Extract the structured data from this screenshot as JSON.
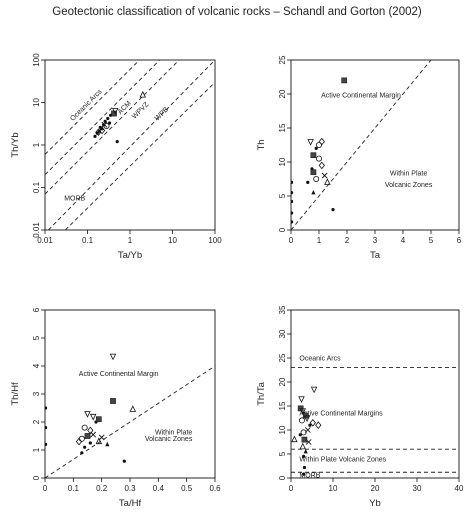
{
  "figure_title": "Geotectonic classification of volcanic rocks – Schandl and Gorton (2002)",
  "chart_data": [
    {
      "id": "p1",
      "type": "scatter",
      "xscale": "log",
      "yscale": "log",
      "xlim": [
        0.01,
        100
      ],
      "ylim": [
        0.01,
        100
      ],
      "xticks": [
        0.01,
        0.1,
        1,
        10,
        100
      ],
      "xtick_labels": [
        "0.01",
        "0.1",
        "1",
        "10",
        "100"
      ],
      "yticks": [
        0.01,
        0.1,
        1,
        10,
        100
      ],
      "ytick_labels": [
        "0.01",
        "0.1",
        "1",
        "10",
        "100"
      ],
      "xlabel": "Ta/Yb",
      "ylabel": "Th/Yb",
      "grid": false,
      "lines": [
        {
          "style": "dashed",
          "points": [
            [
              0.01,
              0.6
            ],
            [
              1.67,
              100
            ]
          ]
        },
        {
          "style": "dashed",
          "points": [
            [
              0.01,
              0.2
            ],
            [
              5,
              100
            ]
          ]
        },
        {
          "style": "dashed",
          "points": [
            [
              0.01,
              0.07
            ],
            [
              14.3,
              100
            ]
          ]
        },
        {
          "style": "dashed",
          "points": [
            [
              0.012,
              0.01
            ],
            [
              100,
              100
            ]
          ]
        },
        {
          "style": "dashed",
          "points": [
            [
              0.03,
              0.01
            ],
            [
              100,
              30
            ]
          ]
        }
      ],
      "annotations": [
        {
          "text": "Oceanic Arcs",
          "x": 0.1,
          "y": 8,
          "rotate": -45
        },
        {
          "text": "ACM",
          "x": 0.8,
          "y": 7,
          "rotate": -45
        },
        {
          "text": "WPVZ",
          "x": 1.9,
          "y": 6,
          "rotate": -45
        },
        {
          "text": "WPB",
          "x": 6,
          "y": 5,
          "rotate": -45
        },
        {
          "text": "MORB",
          "x": 0.05,
          "y": 0.05,
          "rotate": 0
        }
      ],
      "points": [
        {
          "x": 0.15,
          "y": 1.6,
          "m": "dot"
        },
        {
          "x": 0.17,
          "y": 1.9,
          "m": "dot"
        },
        {
          "x": 0.19,
          "y": 2.1,
          "m": "dot"
        },
        {
          "x": 0.2,
          "y": 2.6,
          "m": "dot"
        },
        {
          "x": 0.22,
          "y": 2.4,
          "m": "dot"
        },
        {
          "x": 0.24,
          "y": 3.0,
          "m": "dot"
        },
        {
          "x": 0.26,
          "y": 3.6,
          "m": "dot"
        },
        {
          "x": 0.3,
          "y": 4.2,
          "m": "dot"
        },
        {
          "x": 0.33,
          "y": 3.3,
          "m": "dot"
        },
        {
          "x": 0.35,
          "y": 5.0,
          "m": "dot"
        },
        {
          "x": 0.28,
          "y": 2.8,
          "m": "circle"
        },
        {
          "x": 0.22,
          "y": 2.2,
          "m": "diamond"
        },
        {
          "x": 0.18,
          "y": 2.0,
          "m": "diamond"
        },
        {
          "x": 0.42,
          "y": 5.5,
          "m": "square"
        },
        {
          "x": 0.45,
          "y": 6.5,
          "m": "tri-down"
        },
        {
          "x": 0.25,
          "y": 3.0,
          "m": "cross"
        },
        {
          "x": 0.5,
          "y": 1.2,
          "m": "dot"
        },
        {
          "x": 2.0,
          "y": 15,
          "m": "tri-up"
        }
      ]
    },
    {
      "id": "p2",
      "type": "scatter",
      "xlim": [
        0,
        6
      ],
      "ylim": [
        0,
        25
      ],
      "xticks": [
        0,
        1,
        2,
        3,
        4,
        5,
        6
      ],
      "xtick_labels": [
        "0",
        "1",
        "2",
        "3",
        "4",
        "5",
        "6"
      ],
      "yticks": [
        0,
        5,
        10,
        15,
        20,
        25
      ],
      "ytick_labels": [
        "0",
        "5",
        "10",
        "15",
        "20",
        "25"
      ],
      "xlabel": "Ta",
      "ylabel": "Th",
      "grid": false,
      "lines": [
        {
          "style": "dashed",
          "points": [
            [
              0,
              0
            ],
            [
              5,
              25
            ]
          ]
        }
      ],
      "annotations": [
        {
          "text": "Active Continental Margin",
          "x": 2.5,
          "y": 19.5,
          "anchor": "middle"
        },
        {
          "text": "Within Plate",
          "x": 4.2,
          "y": 8.0,
          "anchor": "middle"
        },
        {
          "text": "Volcanic Zones",
          "x": 4.2,
          "y": 6.3,
          "anchor": "middle"
        }
      ],
      "points": [
        {
          "x": 0.02,
          "y": 7.0,
          "m": "dot"
        },
        {
          "x": 0.02,
          "y": 5.5,
          "m": "dot"
        },
        {
          "x": 0.02,
          "y": 4.2,
          "m": "dot"
        },
        {
          "x": 0.02,
          "y": 2.5,
          "m": "dot"
        },
        {
          "x": 0.02,
          "y": 1.2,
          "m": "dot"
        },
        {
          "x": 1.9,
          "y": 22,
          "m": "square"
        },
        {
          "x": 0.7,
          "y": 13,
          "m": "tri-down"
        },
        {
          "x": 0.9,
          "y": 12,
          "m": "dot"
        },
        {
          "x": 0.8,
          "y": 11,
          "m": "square"
        },
        {
          "x": 1.0,
          "y": 12.5,
          "m": "circle"
        },
        {
          "x": 1.1,
          "y": 13,
          "m": "diamond"
        },
        {
          "x": 1.0,
          "y": 10.5,
          "m": "circle"
        },
        {
          "x": 0.75,
          "y": 9,
          "m": "dot"
        },
        {
          "x": 0.8,
          "y": 8.5,
          "m": "square"
        },
        {
          "x": 1.2,
          "y": 8,
          "m": "cross"
        },
        {
          "x": 1.1,
          "y": 9.5,
          "m": "diamond"
        },
        {
          "x": 0.9,
          "y": 7.5,
          "m": "circle"
        },
        {
          "x": 1.3,
          "y": 7.0,
          "m": "tri-up"
        },
        {
          "x": 0.8,
          "y": 5.5,
          "m": "tri-up-fill"
        },
        {
          "x": 0.6,
          "y": 7.0,
          "m": "dot"
        },
        {
          "x": 1.5,
          "y": 3,
          "m": "dot"
        }
      ]
    },
    {
      "id": "p3",
      "type": "scatter",
      "xlim": [
        0,
        0.6
      ],
      "ylim": [
        0,
        6
      ],
      "xticks": [
        0,
        0.1,
        0.2,
        0.3,
        0.4,
        0.5,
        0.6
      ],
      "xtick_labels": [
        "0",
        "0.1",
        "0.2",
        "0.3",
        "0.4",
        "0.5",
        "0.6"
      ],
      "yticks": [
        0,
        1,
        2,
        3,
        4,
        5,
        6
      ],
      "ytick_labels": [
        "0",
        "1",
        "2",
        "3",
        "4",
        "5",
        "6"
      ],
      "xlabel": "Ta/Hf",
      "ylabel": "Th/Hf",
      "grid": false,
      "lines": [
        {
          "style": "dashed",
          "points": [
            [
              0,
              0
            ],
            [
              0.6,
              4
            ]
          ]
        }
      ],
      "annotations": [
        {
          "text": "Active Continental Margin",
          "x": 0.26,
          "y": 3.65,
          "anchor": "middle"
        },
        {
          "text": "Within Plate",
          "x": 0.52,
          "y": 1.55,
          "anchor": "end"
        },
        {
          "text": "Volcanic Zones",
          "x": 0.52,
          "y": 1.33,
          "anchor": "end"
        }
      ],
      "points": [
        {
          "x": 0.002,
          "y": 2.5,
          "m": "dot"
        },
        {
          "x": 0.002,
          "y": 1.8,
          "m": "dot"
        },
        {
          "x": 0.002,
          "y": 1.2,
          "m": "dot"
        },
        {
          "x": 0.24,
          "y": 4.35,
          "m": "tri-down"
        },
        {
          "x": 0.24,
          "y": 2.75,
          "m": "square"
        },
        {
          "x": 0.31,
          "y": 2.45,
          "m": "tri-up"
        },
        {
          "x": 0.28,
          "y": 0.6,
          "m": "dot"
        },
        {
          "x": 0.15,
          "y": 2.3,
          "m": "tri-down"
        },
        {
          "x": 0.17,
          "y": 2.2,
          "m": "tri-down"
        },
        {
          "x": 0.18,
          "y": 2.0,
          "m": "dot"
        },
        {
          "x": 0.19,
          "y": 2.1,
          "m": "square"
        },
        {
          "x": 0.14,
          "y": 1.8,
          "m": "circle"
        },
        {
          "x": 0.16,
          "y": 1.7,
          "m": "diamond"
        },
        {
          "x": 0.15,
          "y": 1.5,
          "m": "square"
        },
        {
          "x": 0.13,
          "y": 1.4,
          "m": "circle"
        },
        {
          "x": 0.12,
          "y": 1.3,
          "m": "diamond"
        },
        {
          "x": 0.17,
          "y": 1.55,
          "m": "cross"
        },
        {
          "x": 0.2,
          "y": 1.45,
          "m": "cross"
        },
        {
          "x": 0.19,
          "y": 1.3,
          "m": "tri-up"
        },
        {
          "x": 0.14,
          "y": 1.1,
          "m": "dot"
        },
        {
          "x": 0.16,
          "y": 1.25,
          "m": "dot"
        },
        {
          "x": 0.22,
          "y": 1.2,
          "m": "tri-up-fill"
        },
        {
          "x": 0.13,
          "y": 0.9,
          "m": "dot"
        }
      ]
    },
    {
      "id": "p4",
      "type": "scatter",
      "xlim": [
        0,
        40
      ],
      "ylim": [
        0,
        35
      ],
      "xticks": [
        0,
        10,
        20,
        30,
        40
      ],
      "xtick_labels": [
        "0",
        "10",
        "20",
        "30",
        "40"
      ],
      "yticks": [
        0,
        5,
        10,
        15,
        20,
        25,
        30,
        35
      ],
      "ytick_labels": [
        "0",
        "5",
        "10",
        "15",
        "20",
        "25",
        "30",
        "35"
      ],
      "xlabel": "Yb",
      "ylabel": "Th/Ta",
      "grid": false,
      "lines": [
        {
          "style": "dashed",
          "points": [
            [
              0,
              23
            ],
            [
              40,
              23
            ]
          ]
        },
        {
          "style": "dashed",
          "points": [
            [
              0,
              6
            ],
            [
              40,
              6
            ]
          ]
        },
        {
          "style": "dashed",
          "points": [
            [
              0,
              1.2
            ],
            [
              40,
              1.2
            ]
          ]
        }
      ],
      "annotations": [
        {
          "text": "Oceanic Arcs",
          "x": 2,
          "y": 24.5,
          "anchor": "start"
        },
        {
          "text": "Active Continental Margins",
          "x": 2,
          "y": 13.0,
          "anchor": "start"
        },
        {
          "text": "Within Plate Volcanic Zones",
          "x": 2,
          "y": 3.4,
          "anchor": "start"
        },
        {
          "text": "MORB",
          "x": 2,
          "y": 0.1,
          "anchor": "start"
        }
      ],
      "points": [
        {
          "x": 2.5,
          "y": 16.5,
          "m": "tri-down"
        },
        {
          "x": 5.5,
          "y": 18.5,
          "m": "tri-down"
        },
        {
          "x": 2.3,
          "y": 14.5,
          "m": "square"
        },
        {
          "x": 2.8,
          "y": 14.0,
          "m": "tri-down"
        },
        {
          "x": 3.0,
          "y": 13.5,
          "m": "dot"
        },
        {
          "x": 3.5,
          "y": 13.0,
          "m": "square"
        },
        {
          "x": 3.8,
          "y": 12.5,
          "m": "tri-down"
        },
        {
          "x": 2.6,
          "y": 12.0,
          "m": "circle"
        },
        {
          "x": 4.5,
          "y": 11.0,
          "m": "dot"
        },
        {
          "x": 5.2,
          "y": 11.5,
          "m": "diamond"
        },
        {
          "x": 6.5,
          "y": 11.0,
          "m": "diamond"
        },
        {
          "x": 4.0,
          "y": 10.0,
          "m": "cross"
        },
        {
          "x": 3.0,
          "y": 9.5,
          "m": "circle"
        },
        {
          "x": 2.2,
          "y": 9.0,
          "m": "dot"
        },
        {
          "x": 3.2,
          "y": 8.0,
          "m": "square"
        },
        {
          "x": 4.2,
          "y": 7.5,
          "m": "cross"
        },
        {
          "x": 2.8,
          "y": 6.5,
          "m": "tri-up"
        },
        {
          "x": 3.5,
          "y": 5.5,
          "m": "tri-up-fill"
        },
        {
          "x": 3.0,
          "y": 4.5,
          "m": "dot"
        },
        {
          "x": 3.2,
          "y": 2.2,
          "m": "dot"
        },
        {
          "x": 3.0,
          "y": 0.8,
          "m": "dot"
        },
        {
          "x": 0.8,
          "y": 8.0,
          "m": "tri-up"
        }
      ]
    }
  ]
}
